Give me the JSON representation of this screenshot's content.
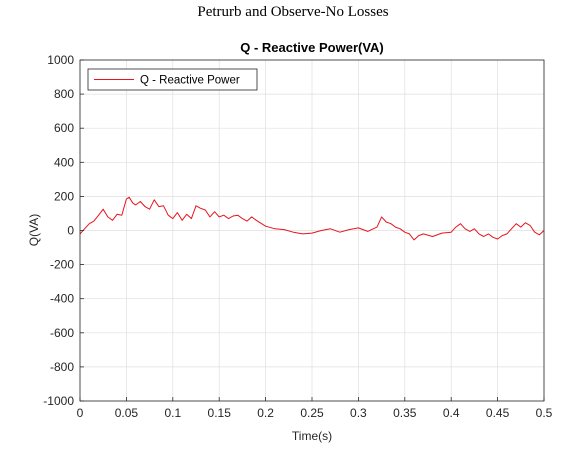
{
  "figure_title": "Petrurb and Observe-No Losses",
  "chart_data": {
    "type": "line",
    "title": "Q - Reactive Power(VA)",
    "xlabel": "Time(s)",
    "ylabel": "Q(VA)",
    "xlim": [
      0,
      0.5
    ],
    "ylim": [
      -1000,
      1000
    ],
    "xticks": [
      0,
      0.05,
      0.1,
      0.15,
      0.2,
      0.25,
      0.3,
      0.35,
      0.4,
      0.45,
      0.5
    ],
    "xtick_labels": [
      "0",
      "0.05",
      "0.1",
      "0.15",
      "0.2",
      "0.25",
      "0.3",
      "0.35",
      "0.4",
      "0.45",
      "0.5"
    ],
    "yticks": [
      1000,
      800,
      600,
      400,
      200,
      0,
      -200,
      -400,
      -600,
      -800,
      -1000
    ],
    "ytick_labels": [
      "1000",
      "800",
      "600",
      "400",
      "200",
      "0",
      "-200",
      "-400",
      "-600",
      "-800",
      "-1000"
    ],
    "grid": true,
    "legend_position": "top-left",
    "series": [
      {
        "name": "Q - Reactive Power",
        "color": "#e8141c",
        "x": [
          0,
          0.005,
          0.01,
          0.015,
          0.02,
          0.025,
          0.03,
          0.035,
          0.04,
          0.045,
          0.05,
          0.053,
          0.057,
          0.06,
          0.065,
          0.07,
          0.075,
          0.08,
          0.085,
          0.09,
          0.095,
          0.1,
          0.105,
          0.11,
          0.115,
          0.12,
          0.125,
          0.13,
          0.135,
          0.14,
          0.145,
          0.15,
          0.155,
          0.16,
          0.165,
          0.17,
          0.175,
          0.18,
          0.185,
          0.19,
          0.2,
          0.21,
          0.22,
          0.23,
          0.24,
          0.25,
          0.26,
          0.27,
          0.28,
          0.29,
          0.3,
          0.31,
          0.32,
          0.325,
          0.33,
          0.335,
          0.34,
          0.345,
          0.35,
          0.355,
          0.36,
          0.365,
          0.37,
          0.38,
          0.39,
          0.4,
          0.405,
          0.41,
          0.415,
          0.42,
          0.425,
          0.43,
          0.435,
          0.44,
          0.445,
          0.45,
          0.455,
          0.46,
          0.465,
          0.47,
          0.475,
          0.48,
          0.485,
          0.49,
          0.495,
          0.5
        ],
        "values": [
          -20,
          10,
          40,
          55,
          90,
          125,
          80,
          60,
          95,
          90,
          185,
          195,
          160,
          150,
          170,
          140,
          125,
          180,
          140,
          145,
          90,
          70,
          105,
          60,
          95,
          70,
          145,
          130,
          120,
          80,
          110,
          80,
          90,
          70,
          85,
          90,
          70,
          55,
          80,
          60,
          25,
          10,
          5,
          -10,
          -20,
          -15,
          0,
          10,
          -10,
          5,
          15,
          -5,
          20,
          80,
          50,
          40,
          20,
          10,
          -10,
          -20,
          -55,
          -30,
          -20,
          -35,
          -15,
          -10,
          20,
          40,
          10,
          -5,
          10,
          -20,
          -35,
          -20,
          -40,
          -50,
          -30,
          -20,
          10,
          40,
          20,
          45,
          30,
          -10,
          -25,
          0
        ]
      }
    ]
  }
}
